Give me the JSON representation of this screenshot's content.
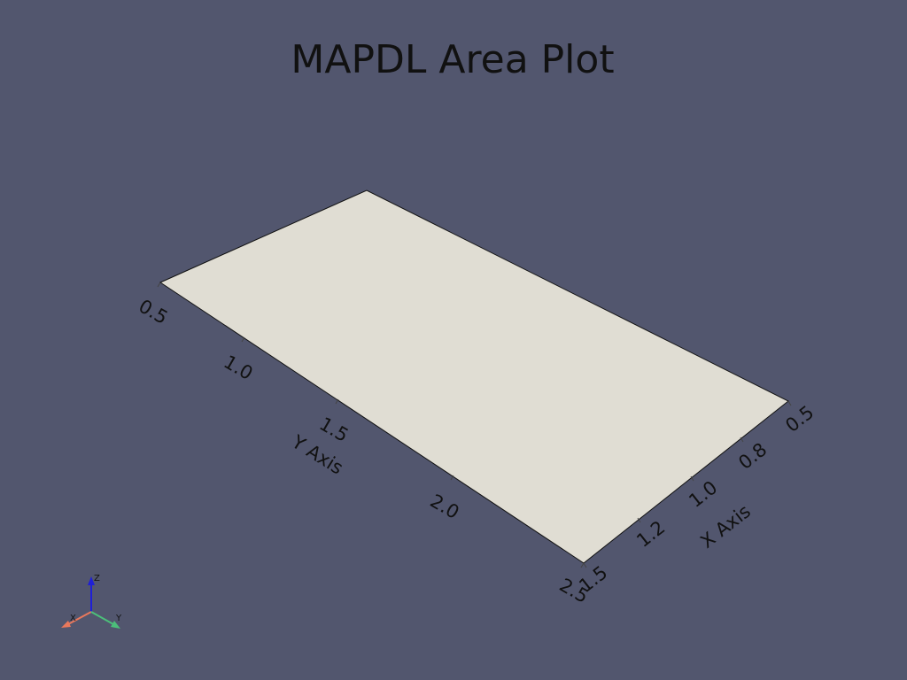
{
  "plot": {
    "title": "MAPDL Area Plot",
    "background_color": "#52566e",
    "surface_color": "#e0ddd3",
    "y_axis": {
      "label": "Y Axis",
      "ticks": [
        "0.5",
        "1.0",
        "1.5",
        "2.0",
        "2.5"
      ]
    },
    "x_axis": {
      "label": "X Axis",
      "ticks": [
        "0.5",
        "0.8",
        "1.0",
        "1.2",
        "1.5"
      ]
    },
    "orientation_triad": {
      "x_label": "X",
      "y_label": "Y",
      "z_label": "Z",
      "x_color": "#e9785c",
      "y_color": "#4cbf7a",
      "z_color": "#1f1fd6"
    }
  }
}
